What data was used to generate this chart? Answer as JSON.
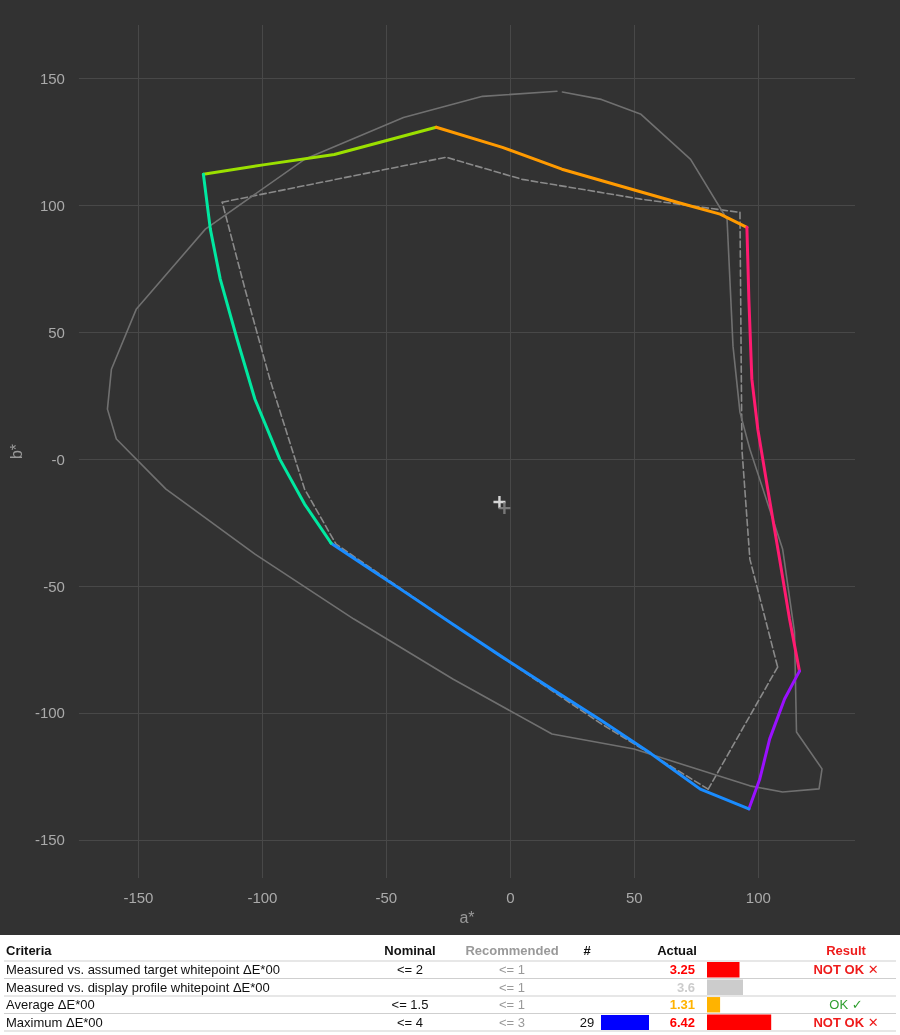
{
  "chart_data": [
    {
      "type": "line",
      "xlabel": "a*",
      "ylabel": "b*",
      "xlim": [
        -174,
        139
      ],
      "ylim": [
        -165,
        171
      ],
      "xticks": [
        -150,
        -100,
        -50,
        0,
        50,
        100
      ],
      "yticks": [
        -150,
        -100,
        -50,
        {
          "value": 0,
          "label": "-0"
        },
        50,
        100,
        150
      ],
      "grid": true,
      "marker": "none",
      "series": [
        {
          "color": "#707070",
          "line_style": "solid",
          "x": [
            18.8,
            -11.2,
            -43.1,
            -83,
            -123,
            -150.9,
            -160.9,
            -162.5,
            -158.9,
            -138.9,
            -103,
            -63.1,
            -23.2,
            16.8,
            49.9,
            96.6,
            109.8,
            124.5,
            125.7,
            115.4,
            114.6,
            109.8,
            96.6,
            92.6,
            89.8,
            87.4,
            72.7,
            52.7,
            36.7,
            21
          ],
          "values": [
            144.9,
            142.9,
            134.6,
            118.1,
            90.6,
            59,
            35.4,
            19.7,
            7.9,
            -11.8,
            -37.4,
            -63,
            -86.6,
            -108.3,
            -114.2,
            -128.7,
            -131.1,
            -129.9,
            -122,
            -107.5,
            -68.1,
            -35.4,
            3.9,
            18.5,
            44.5,
            94.5,
            118.1,
            135.8,
            141.7,
            144.6
          ]
        },
        {
          "color": "#8a8a8a",
          "line_style": "dashed",
          "x": [
            -116.2,
            -25.9,
            4.8,
            52.7,
            92.6
          ],
          "values": [
            101.2,
            118.9,
            110.2,
            102.4,
            97.2
          ]
        },
        {
          "color": "#8a8a8a",
          "line_style": "dashed",
          "x": [
            92.6,
            93.4,
            96.6,
            107.8
          ],
          "values": [
            97.2,
            3.9,
            -39.4,
            -81.9
          ]
        },
        {
          "color": "#8a8a8a",
          "line_style": "dashed",
          "x": [
            107.8,
            79.8
          ],
          "values": [
            -81.9,
            -130
          ]
        },
        {
          "color": "#8a8a8a",
          "line_style": "dashed",
          "x": [
            79.8,
            36.7,
            -23.2,
            -70.3,
            -83,
            -97,
            -107,
            -116.2
          ],
          "values": [
            -130,
            -104.3,
            -65,
            -33.5,
            -11.8,
            31.5,
            66.9,
            101.2
          ]
        },
        {
          "color": "#9be000",
          "line_style": "solid",
          "x": [
            -123.8,
            -99,
            -71,
            -29.9
          ],
          "values": [
            112.2,
            116,
            120,
            130.7
          ]
        },
        {
          "color": "#ff9a00",
          "line_style": "solid",
          "x": [
            -29.9,
            -3.2,
            20.8,
            44.7,
            68.7,
            84.6,
            95.4
          ],
          "values": [
            130.7,
            122.8,
            114.2,
            107.5,
            100.8,
            96.5,
            91.3
          ]
        },
        {
          "color": "#ff1a70",
          "line_style": "solid",
          "x": [
            95.4,
            96.2,
            97.4,
            99.8,
            103.8,
            108.6,
            112.6,
            116.6
          ],
          "values": [
            91.3,
            63,
            31.5,
            11.8,
            -11.8,
            -39.4,
            -63,
            -83.5
          ]
        },
        {
          "color": "#9a10ff",
          "line_style": "solid",
          "x": [
            116.6,
            110.6,
            104.6,
            100.6,
            96.2
          ],
          "values": [
            -83.5,
            -94.5,
            -110.2,
            -126,
            -137.8
          ]
        },
        {
          "color": "#1a8cff",
          "line_style": "solid",
          "x": [
            96.2,
            76.6,
            56.7,
            36.7,
            16.8,
            -3.2,
            -23.2,
            -43.1,
            -59.1,
            -72.3
          ],
          "values": [
            -137.8,
            -130,
            -116,
            -103,
            -90.6,
            -78,
            -65,
            -52,
            -41.7,
            -33.1
          ]
        },
        {
          "color": "#00e8a0",
          "line_style": "solid",
          "x": [
            -72.3,
            -83,
            -93,
            -103,
            -110.2,
            -117,
            -121,
            -123.8
          ],
          "values": [
            -33.1,
            -17.7,
            0,
            23.6,
            47.2,
            70.9,
            90.6,
            112.2
          ]
        },
        {
          "type": "scatter",
          "marker": "cross",
          "color": "#ffffff",
          "x": [
            -4.4
          ],
          "values": [
            -16.9
          ]
        },
        {
          "type": "scatter",
          "marker": "cross",
          "color": "#8a8a8a",
          "x": [
            -2.4
          ],
          "values": [
            -19.3
          ]
        }
      ]
    },
    {
      "type": "bar",
      "orientation": "horizontal",
      "categories": [
        "Measured vs. assumed target whitepoint ΔE*00",
        "Measured vs. display profile whitepoint ΔE*00",
        "Average ΔE*00",
        "Maximum ΔE*00"
      ],
      "values": [
        3.25,
        3.6,
        1.31,
        6.42
      ],
      "colors": [
        "#ff0000",
        "#cccccc",
        "#ffb300",
        "#ff0000"
      ],
      "data_labels": true,
      "annotations": [
        "Criteria",
        "Nominal",
        "Recommended",
        "#",
        "Actual",
        "Result",
        "<= 2",
        "<= 1",
        "NOT OK ✕",
        "<= 1",
        "<= 1.5",
        "<= 1",
        "OK ✓",
        "<= 4",
        "<= 3",
        "29",
        "NOT OK ✕"
      ]
    }
  ]
}
